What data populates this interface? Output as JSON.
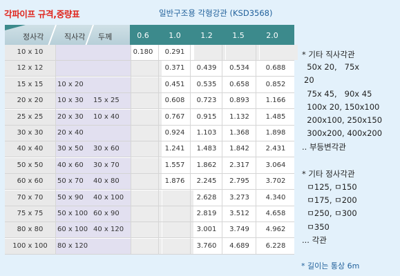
{
  "title": "각파이프 규격,중량표",
  "subtitle": "일반구조용 각형강관 (KSD3568)",
  "header": {
    "square_label": "정사각",
    "rect_label": "직사각",
    "thickness_label": "두께",
    "thicknesses": [
      "0.6",
      "1.0",
      "1.2",
      "1.5",
      "2.0"
    ]
  },
  "rows": [
    {
      "square": "10 x 10",
      "rect1": "",
      "rect2": "",
      "values": [
        "0.180",
        "0.291",
        "",
        "",
        ""
      ]
    },
    {
      "square": "12 x 12",
      "rect1": "",
      "rect2": "",
      "values": [
        "",
        "0.371",
        "0.439",
        "0.534",
        "0.688"
      ]
    },
    {
      "square": "15 x 15",
      "rect1": "10 x 20",
      "rect2": "",
      "values": [
        "",
        "0.451",
        "0.535",
        "0.658",
        "0.852"
      ]
    },
    {
      "square": "20 x 20",
      "rect1": "10 x 30",
      "rect2": "15 x 25",
      "values": [
        "",
        "0.608",
        "0.723",
        "0.893",
        "1.166"
      ]
    },
    {
      "square": "25 x 25",
      "rect1": "20 x 30",
      "rect2": "10 x 40",
      "values": [
        "",
        "0.767",
        "0.915",
        "1.132",
        "1.485"
      ]
    },
    {
      "square": "30 x 30",
      "rect1": "20 x 40",
      "rect2": "",
      "values": [
        "",
        "0.924",
        "1.103",
        "1.368",
        "1.898"
      ]
    },
    {
      "square": "40 x 40",
      "rect1": "30 x 50",
      "rect2": "30 x 60",
      "values": [
        "",
        "1.241",
        "1.483",
        "1.842",
        "2.431"
      ]
    },
    {
      "square": "50 x 50",
      "rect1": "40 x 60",
      "rect2": "30 x 70",
      "values": [
        "",
        "1.557",
        "1.862",
        "2.317",
        "3.064"
      ]
    },
    {
      "square": "60 x 60",
      "rect1": "50 x 70",
      "rect2": "40 x 80",
      "values": [
        "",
        "1.876",
        "2.245",
        "2.795",
        "3.702"
      ]
    },
    {
      "square": "70 x 70",
      "rect1": "50 x 90",
      "rect2": "40 x 100",
      "values": [
        "",
        "",
        "2.628",
        "3.273",
        "4.340"
      ]
    },
    {
      "square": "75 x 75",
      "rect1": "50 x 100",
      "rect2": "60 x 90",
      "values": [
        "",
        "",
        "2.819",
        "3.512",
        "4.658"
      ]
    },
    {
      "square": "80 x 80",
      "rect1": "60 x 100",
      "rect2": "40 x 120",
      "values": [
        "",
        "",
        "3.001",
        "3.749",
        "4.962"
      ]
    },
    {
      "square": "100 x 100",
      "rect1": "80 x 120",
      "rect2": "",
      "values": [
        "",
        "",
        "3.760",
        "4.689",
        "6.228"
      ]
    }
  ],
  "side_notes": [
    "* 기타 직사각관",
    "  50x 20,   75x",
    "20",
    "  75x 45,   90x 45",
    "  100x 20, 150x100",
    "  200x100, 250x150",
    "  300x200, 400x200",
    ".. 부등변각관",
    "",
    "* 기타 정사각관",
    "  ㅁ125, ㅁ150",
    "  ㅁ175, ㅁ200",
    "  ㅁ250, ㅁ300",
    "  ㅁ350",
    "... 각관"
  ],
  "footnote": "* 길이는 통상 6m"
}
